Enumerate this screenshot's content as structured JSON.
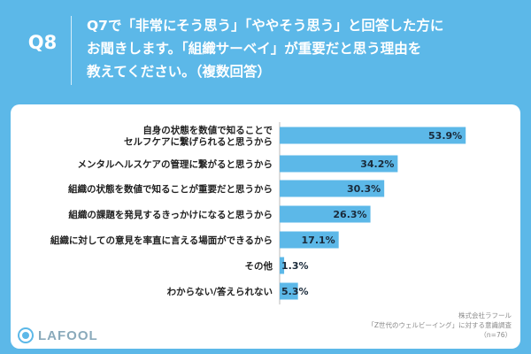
{
  "header": {
    "question_number": "Q8",
    "question_lines": [
      "Q7で「非常にそう思う」「ややそう思う」と回答した方に",
      "お聞きします。「組織サーベイ」が重要だと思う理由を",
      "教えてください。（複数回答）"
    ]
  },
  "chart_data": {
    "type": "bar",
    "orientation": "horizontal",
    "title": "",
    "xlabel": "",
    "ylabel": "",
    "xlim": [
      0,
      100
    ],
    "categories": [
      [
        "自身の状態を数値で知ることで",
        "セルフケアに繋げられると思うから"
      ],
      [
        "メンタルヘルスケアの管理に繋がると思うから"
      ],
      [
        "組織の状態を数値で知ることが重要だと思うから"
      ],
      [
        "組織の課題を発見するきっかけになると思うから"
      ],
      [
        "組織に対しての意見を率直に言える場面ができるから"
      ],
      [
        "その他"
      ],
      [
        "わからない/答えられない"
      ]
    ],
    "values": [
      53.9,
      34.2,
      30.3,
      26.3,
      17.1,
      1.3,
      5.3
    ],
    "value_labels": [
      "53.9%",
      "34.2%",
      "30.3%",
      "26.3%",
      "17.1%",
      "1.3%",
      "5.3%"
    ],
    "bar_color": "#5cb8e8"
  },
  "footer": {
    "logo_text": "LAFOOL",
    "source_lines": [
      "株式会社ラフール",
      "「Z世代のウェルビーイング」に対する意識調査",
      "（n=76）"
    ]
  },
  "colors": {
    "background": "#5cb8e8",
    "card": "#ffffff",
    "bar": "#5cb8e8"
  }
}
